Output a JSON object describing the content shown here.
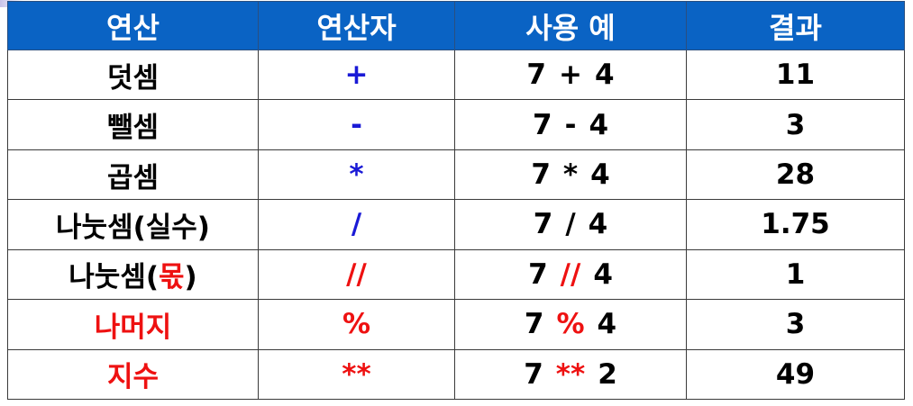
{
  "headers": [
    "연산",
    "연산자",
    "사용 예",
    "결과"
  ],
  "rows": [
    {
      "op": "덧셈",
      "symbol": "+",
      "ex_left": "7",
      "ex_op": "+",
      "ex_right": "4",
      "result": "11"
    },
    {
      "op": "뺄셈",
      "symbol": "-",
      "ex_left": "7",
      "ex_op": "-",
      "ex_right": "4",
      "result": "3"
    },
    {
      "op": "곱셈",
      "symbol": "*",
      "ex_left": "7",
      "ex_op": "*",
      "ex_right": "4",
      "result": "28"
    },
    {
      "op": "나눗셈(실수)",
      "symbol": "/",
      "ex_left": "7",
      "ex_op": "/",
      "ex_right": "4",
      "result": "1.75"
    },
    {
      "op_prefix": "나눗셈(",
      "op_highlight": "몫",
      "op_suffix": ")",
      "symbol": "//",
      "ex_left": "7",
      "ex_op": "//",
      "ex_right": "4",
      "result": "1"
    },
    {
      "op": "나머지",
      "symbol": "%",
      "ex_left": "7",
      "ex_op": "%",
      "ex_right": "4",
      "result": "3"
    },
    {
      "op": "지수",
      "symbol": "**",
      "ex_left": "7",
      "ex_op": "**",
      "ex_right": "2",
      "result": "49"
    }
  ],
  "colors": {
    "header_bg": "#0a63c4",
    "header_text": "#ffffff",
    "operator_blue": "#1a1ad6",
    "highlight_red": "#ee1111"
  }
}
